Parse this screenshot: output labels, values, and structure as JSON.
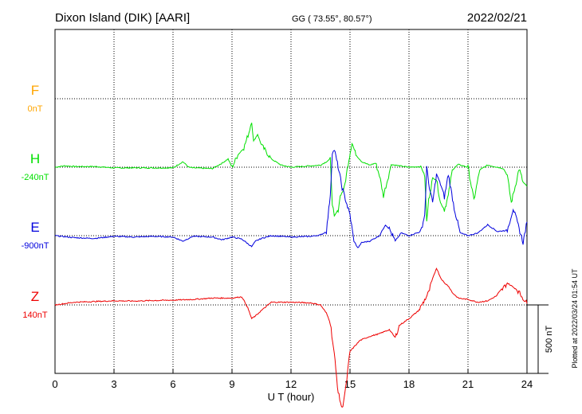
{
  "header": {
    "station": "Dixon Island (DIK)  [AARI]",
    "coords": "GG ( 73.55°,  80.57°)",
    "date": "2022/02/21"
  },
  "footer": {
    "plotted": "Plotted at 2022/03/24 01:54 UT"
  },
  "chart_data": {
    "type": "line",
    "xlabel": "U T (hour)",
    "xlim": [
      0,
      24
    ],
    "xticks": [
      "0",
      "3",
      "6",
      "9",
      "12",
      "15",
      "18",
      "21",
      "24"
    ],
    "scale_label": "500 nT",
    "scale_nT": 500,
    "colors": {
      "F": "#ffa500",
      "H": "#00e000",
      "E": "#0000dd",
      "Z": "#ee0000"
    },
    "series": [
      {
        "name": "F",
        "baseline_label": "0nT",
        "values": []
      },
      {
        "name": "H",
        "baseline_label": "-240nT",
        "x": [
          0,
          0.5,
          1,
          2,
          3,
          4,
          5,
          6,
          6.5,
          6.8,
          7,
          8,
          8.5,
          8.8,
          9,
          9.3,
          9.6,
          9.9,
          10,
          10.1,
          10.3,
          10.5,
          11,
          11.5,
          12,
          12.5,
          13,
          13.5,
          13.8,
          14,
          14.1,
          14.2,
          14.4,
          14.5,
          14.7,
          14.9,
          15.1,
          15.3,
          15.6,
          16,
          16.3,
          16.5,
          16.7,
          17,
          17.1,
          17.5,
          18,
          18.6,
          18.8,
          18.9,
          19,
          19.2,
          19.4,
          19.6,
          19.8,
          20,
          20.2,
          20.5,
          21,
          21.3,
          21.6,
          22,
          22.5,
          22.8,
          23,
          23.2,
          23.4,
          23.6,
          23.8,
          24
        ],
        "values": [
          -240,
          -230,
          -235,
          -235,
          -245,
          -245,
          -245,
          -245,
          -200,
          -240,
          -245,
          -250,
          -210,
          -180,
          -240,
          -150,
          -100,
          30,
          100,
          -50,
          0,
          -80,
          -180,
          -225,
          -240,
          -235,
          -230,
          -225,
          -200,
          -180,
          -500,
          -600,
          -550,
          -450,
          -400,
          -220,
          -60,
          -150,
          -200,
          -225,
          -210,
          -300,
          -450,
          -280,
          -220,
          -230,
          -240,
          -235,
          -300,
          -640,
          -480,
          -320,
          -330,
          -500,
          -550,
          -450,
          -260,
          -220,
          -240,
          -480,
          -260,
          -225,
          -240,
          -250,
          -300,
          -500,
          -380,
          -250,
          -350,
          -380
        ]
      },
      {
        "name": "E",
        "baseline_label": "-900nT",
        "x": [
          0,
          1,
          2,
          3,
          4,
          5,
          6,
          6.5,
          6.8,
          7,
          8,
          8.5,
          9,
          9.5,
          10,
          10.2,
          10.5,
          11,
          12,
          13,
          13.5,
          13.8,
          14,
          14.1,
          14.2,
          14.4,
          14.6,
          14.8,
          15,
          15.2,
          15.4,
          15.6,
          16,
          16.5,
          16.8,
          17,
          17.3,
          17.6,
          18,
          18.6,
          18.8,
          18.9,
          19,
          19.2,
          19.4,
          19.6,
          19.8,
          20,
          20.3,
          20.6,
          21,
          21.5,
          22,
          22.5,
          23,
          23.3,
          23.6,
          23.8,
          24
        ],
        "values": [
          -900,
          -915,
          -920,
          -905,
          -910,
          -905,
          -910,
          -940,
          -920,
          -905,
          -910,
          -930,
          -910,
          -925,
          -980,
          -940,
          -920,
          -900,
          -910,
          -905,
          -895,
          -870,
          -600,
          -300,
          -270,
          -400,
          -550,
          -650,
          -750,
          -940,
          -990,
          -950,
          -940,
          -900,
          -820,
          -850,
          -940,
          -880,
          -900,
          -870,
          -750,
          -400,
          -520,
          -660,
          -450,
          -520,
          -620,
          -450,
          -700,
          -880,
          -900,
          -880,
          -820,
          -870,
          -860,
          -700,
          -850,
          -950,
          -800
        ]
      },
      {
        "name": "Z",
        "baseline_label": "140nT",
        "x": [
          0,
          0.5,
          1,
          2,
          3,
          4,
          5,
          6,
          7,
          8,
          9,
          9.5,
          9.8,
          10,
          10.2,
          10.5,
          11,
          12,
          13,
          13.5,
          13.8,
          14,
          14.2,
          14.4,
          14.6,
          14.8,
          15,
          15.5,
          16,
          16.5,
          17,
          17.3,
          17.5,
          18,
          18.5,
          19,
          19.2,
          19.4,
          19.6,
          19.8,
          20,
          20.2,
          20.5,
          21,
          21.5,
          22,
          22.5,
          23,
          23.5,
          24
        ],
        "values": [
          140,
          150,
          160,
          165,
          170,
          168,
          172,
          175,
          180,
          190,
          190,
          200,
          120,
          40,
          60,
          100,
          160,
          160,
          155,
          140,
          80,
          10,
          -220,
          -500,
          -620,
          -450,
          -200,
          -120,
          -90,
          -70,
          -40,
          -100,
          -10,
          40,
          100,
          230,
          330,
          410,
          340,
          300,
          280,
          230,
          190,
          180,
          160,
          170,
          210,
          300,
          250,
          150
        ]
      }
    ]
  }
}
